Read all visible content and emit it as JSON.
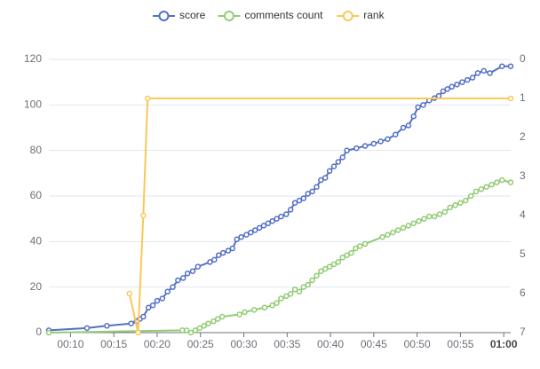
{
  "chart_data": {
    "type": "line",
    "xlim": [
      7.5,
      60.8
    ],
    "xticks": [
      {
        "value": 10,
        "label": "00:10"
      },
      {
        "value": 15,
        "label": "00:15"
      },
      {
        "value": 20,
        "label": "00:20"
      },
      {
        "value": 25,
        "label": "00:25"
      },
      {
        "value": 30,
        "label": "00:30"
      },
      {
        "value": 35,
        "label": "00:35"
      },
      {
        "value": 40,
        "label": "00:40"
      },
      {
        "value": 45,
        "label": "00:45"
      },
      {
        "value": 50,
        "label": "00:50"
      },
      {
        "value": 55,
        "label": "00:55"
      },
      {
        "value": 60,
        "label": "01:00"
      }
    ],
    "ylim": [
      0,
      120
    ],
    "yticks": [
      0,
      20,
      40,
      60,
      80,
      100,
      120
    ],
    "y2lim": [
      7,
      0
    ],
    "y2ticks": [
      0,
      1,
      2,
      3,
      4,
      5,
      6,
      7
    ],
    "grid": true,
    "series": [
      {
        "name": "score",
        "color": "#5470c6",
        "x": [
          7.5,
          11.9,
          14.2,
          17,
          17.6,
          18,
          18.4,
          19,
          19.5,
          20,
          20.6,
          21.2,
          21.8,
          22.4,
          23,
          23.5,
          24.1,
          24.7,
          26.1,
          26.6,
          27.1,
          27.6,
          28.2,
          28.7,
          29.2,
          29.7,
          30.3,
          30.8,
          31.3,
          31.8,
          32.3,
          32.8,
          33.3,
          33.8,
          34.3,
          34.9,
          35.4,
          35.9,
          36.4,
          36.9,
          37.4,
          37.9,
          38.4,
          38.9,
          39.4,
          39.9,
          40.4,
          40.9,
          41.4,
          41.9,
          43,
          44,
          45,
          45.8,
          46.6,
          47.5,
          48.4,
          49,
          49.6,
          50.1,
          50.7,
          51.4,
          52,
          52.5,
          53,
          53.5,
          54,
          54.6,
          55.2,
          55.8,
          56.4,
          57,
          57.7,
          58.4,
          59.8,
          60.8
        ],
        "values": [
          1,
          2,
          3,
          4,
          5,
          6,
          7,
          11,
          12,
          14,
          15,
          18,
          20,
          23,
          24,
          26,
          27,
          29,
          31,
          32,
          34,
          35,
          36,
          37,
          41,
          42,
          43,
          44,
          45,
          46,
          47,
          48,
          49,
          50,
          51,
          52,
          54,
          57,
          58,
          59,
          61,
          62,
          64,
          67,
          68,
          71,
          73,
          75,
          77,
          80,
          81,
          82,
          83,
          84,
          85,
          87,
          90,
          91,
          95,
          99,
          100,
          102,
          103,
          104,
          106,
          107,
          108,
          109,
          110,
          111,
          112,
          114,
          115,
          114,
          117,
          117
        ]
      },
      {
        "name": "comments count",
        "color": "#91cc75",
        "x": [
          7.5,
          22.9,
          23.4,
          23.9,
          24.4,
          24.9,
          25.4,
          25.9,
          26.5,
          27,
          27.5,
          29.5,
          30.1,
          31.2,
          32.4,
          33.3,
          33.8,
          34.3,
          34.9,
          35.4,
          35.9,
          36.4,
          36.9,
          37.4,
          37.9,
          38.4,
          38.9,
          39.4,
          39.9,
          40.4,
          40.9,
          41.4,
          41.9,
          42.4,
          42.9,
          43.4,
          44,
          46,
          46.6,
          47.2,
          47.8,
          48.4,
          49,
          49.6,
          50.2,
          50.8,
          51.4,
          52,
          52.6,
          53.2,
          53.8,
          54.4,
          55,
          55.6,
          56.2,
          56.8,
          57.4,
          58,
          58.6,
          59.2,
          59.8,
          60.8
        ],
        "values": [
          0,
          1,
          1,
          0,
          1,
          2,
          3,
          4,
          5,
          6,
          7,
          8,
          9,
          10,
          11,
          12,
          13,
          15,
          16,
          17,
          19,
          18,
          20,
          21,
          23,
          25,
          27,
          28,
          29,
          30,
          31,
          33,
          34,
          35,
          37,
          38,
          39,
          42,
          43,
          44,
          45,
          46,
          47,
          48,
          49,
          50,
          51,
          51,
          52,
          53,
          55,
          56,
          57,
          58,
          60,
          62,
          63,
          64,
          65,
          66,
          67,
          66
        ]
      },
      {
        "name": "rank",
        "color": "#fac858",
        "axis": "y2",
        "x": [
          16.8,
          17.8,
          18.4,
          18.9,
          60.8
        ],
        "values": [
          6,
          7,
          4,
          1,
          1
        ]
      }
    ]
  }
}
